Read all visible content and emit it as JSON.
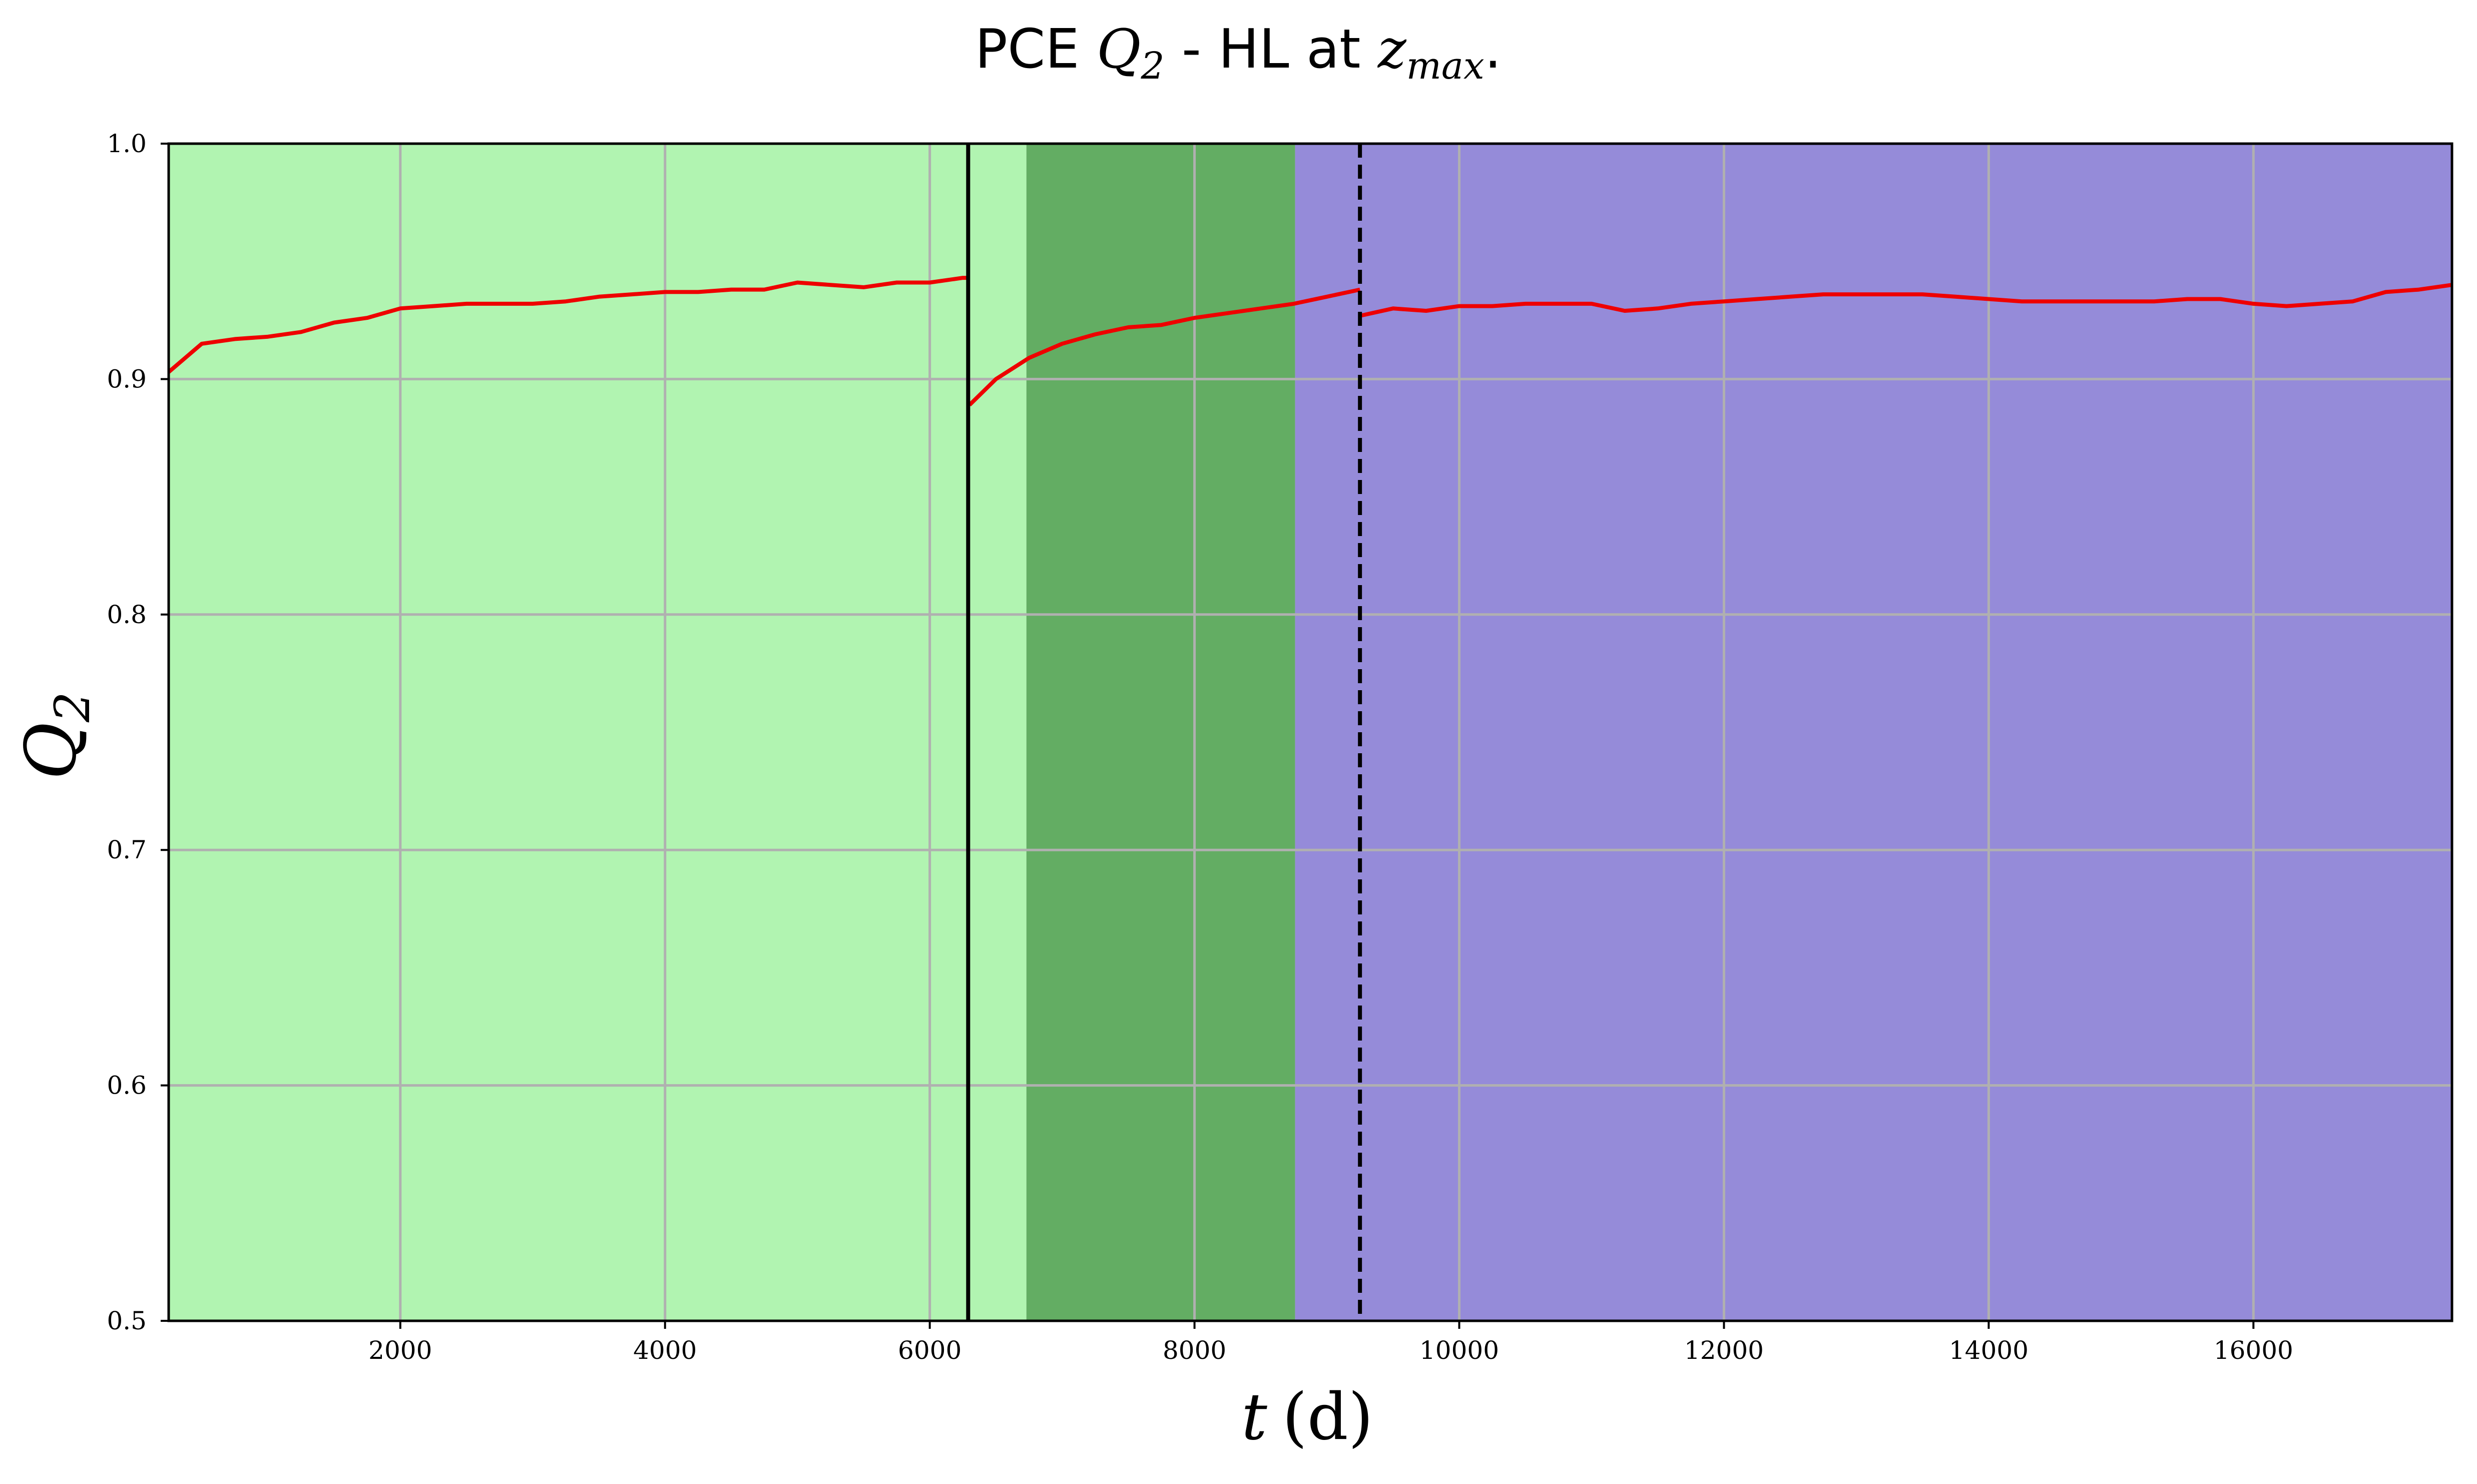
{
  "chart_data": {
    "type": "line",
    "title": {
      "prefix": "PCE ",
      "q_symbol": "Q",
      "q_subscript": "2",
      "middle": " - HL at ",
      "z_symbol": "z",
      "z_subscript": "max",
      "suffix": "."
    },
    "xlabel": {
      "var": "t",
      "unit": "(d)"
    },
    "ylabel": {
      "symbol": "Q",
      "subscript": "2"
    },
    "xlim": [
      250,
      17500
    ],
    "ylim": [
      0.5,
      1.0
    ],
    "grid": true,
    "x_ticks": [
      2000,
      4000,
      6000,
      8000,
      10000,
      12000,
      14000,
      16000
    ],
    "x_tick_labels": [
      "2000",
      "4000",
      "6000",
      "8000",
      "10000",
      "12000",
      "14000",
      "16000"
    ],
    "y_ticks": [
      0.5,
      0.6,
      0.7,
      0.8,
      0.9,
      1.0
    ],
    "y_tick_labels": [
      "0.5",
      "0.6",
      "0.7",
      "0.8",
      "0.9",
      "1.0"
    ],
    "regions": [
      {
        "x0": 250,
        "x1": 6730,
        "color": "#b1f4b1"
      },
      {
        "x0": 6730,
        "x1": 8760,
        "color": "#63ad63"
      },
      {
        "x0": 8760,
        "x1": 17500,
        "color": "#958bd9"
      }
    ],
    "vlines": [
      {
        "x": 6290,
        "style": "solid",
        "color": "#000000"
      },
      {
        "x": 9250,
        "style": "dashed",
        "color": "#000000"
      }
    ],
    "series": [
      {
        "color": "#ee0000",
        "segments": [
          {
            "x": [
              250,
              500,
              750,
              1000,
              1250,
              1500,
              1750,
              2000,
              2250,
              2500,
              2750,
              3000,
              3250,
              3500,
              3750,
              4000,
              4250,
              4500,
              4750,
              5000,
              5250,
              5500,
              5750,
              6000,
              6250,
              6290
            ],
            "y": [
              0.903,
              0.915,
              0.917,
              0.918,
              0.92,
              0.924,
              0.926,
              0.93,
              0.931,
              0.932,
              0.932,
              0.932,
              0.933,
              0.935,
              0.936,
              0.937,
              0.937,
              0.938,
              0.938,
              0.941,
              0.94,
              0.939,
              0.941,
              0.941,
              0.943,
              0.943
            ]
          },
          {
            "x": [
              6300,
              6500,
              6750,
              7000,
              7250,
              7500,
              7750,
              8000,
              8250,
              8500,
              8750,
              9000,
              9250
            ],
            "y": [
              0.889,
              0.9,
              0.909,
              0.915,
              0.919,
              0.922,
              0.923,
              0.926,
              0.928,
              0.93,
              0.932,
              0.935,
              0.938
            ]
          },
          {
            "x": [
              9260,
              9500,
              9750,
              10000,
              10250,
              10500,
              10750,
              11000,
              11250,
              11500,
              11750,
              12000,
              12250,
              12500,
              12750,
              13000,
              13250,
              13500,
              13750,
              14000,
              14250,
              14500,
              14750,
              15000,
              15250,
              15500,
              15750,
              16000,
              16250,
              16500,
              16750,
              17000,
              17250,
              17500
            ],
            "y": [
              0.927,
              0.93,
              0.929,
              0.931,
              0.931,
              0.932,
              0.932,
              0.932,
              0.929,
              0.93,
              0.932,
              0.933,
              0.934,
              0.935,
              0.936,
              0.936,
              0.936,
              0.936,
              0.935,
              0.934,
              0.933,
              0.933,
              0.933,
              0.933,
              0.933,
              0.934,
              0.934,
              0.932,
              0.931,
              0.932,
              0.933,
              0.937,
              0.938,
              0.94
            ]
          }
        ]
      }
    ]
  }
}
